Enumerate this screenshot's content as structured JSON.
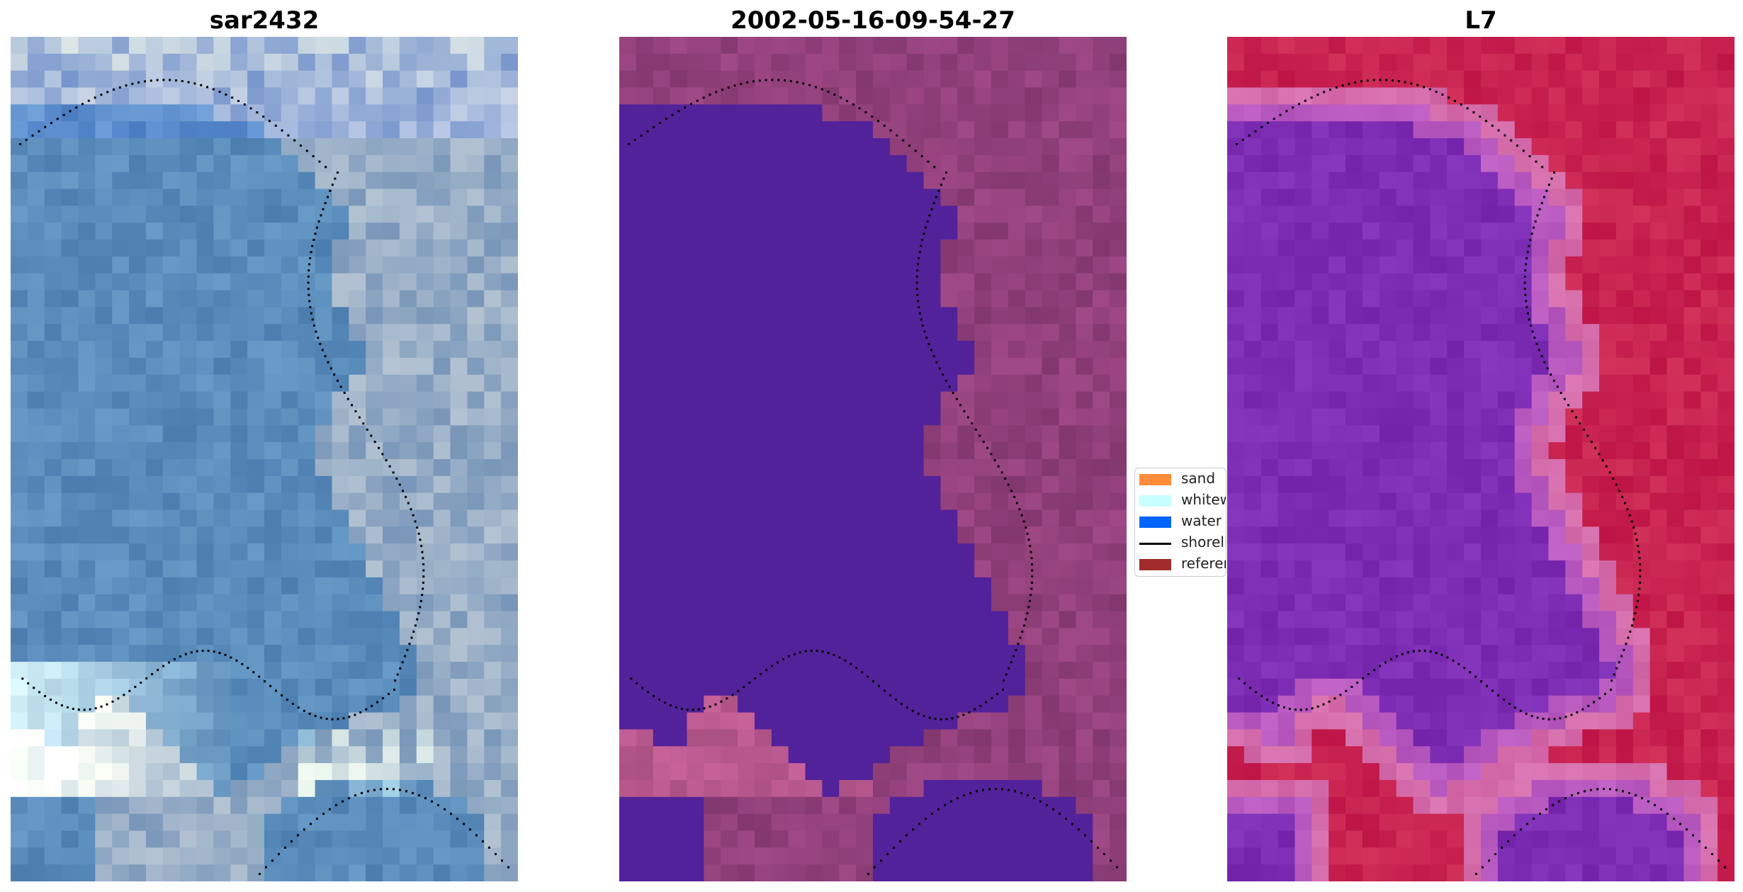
{
  "panels": [
    {
      "title": "sar2432",
      "kind": "rgb"
    },
    {
      "title": "2002-05-16-09-54-27",
      "kind": "classified"
    },
    {
      "title": "L7",
      "kind": "index"
    }
  ],
  "legend": {
    "items": [
      {
        "label": "sand",
        "color": "#ff8c3a",
        "type": "patch"
      },
      {
        "label": "whitewater",
        "color": "#c8ffff",
        "type": "patch"
      },
      {
        "label": "water",
        "color": "#0064ff",
        "type": "patch"
      },
      {
        "label": "shoreline",
        "color": "#000000",
        "type": "line"
      },
      {
        "label": "reference shoreline",
        "color": "#a02c2c",
        "type": "patch"
      }
    ]
  },
  "colors": {
    "water_class": "#52229a",
    "land_base": "#8e3f7a",
    "index_water": "#7a24b0",
    "index_land": "#c2184a"
  }
}
